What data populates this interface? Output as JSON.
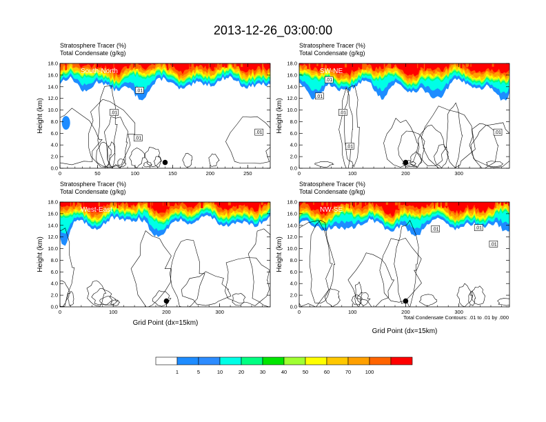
{
  "figure": {
    "title": "2013-12-26_03:00:00",
    "subtitle_tracer": "Stratosphere Tracer   (%)",
    "subtitle_condensate": "Total Condensate   (g/kg)",
    "ylabel": "Height (km)",
    "xlabel": "Grid Point (dx=15km)",
    "contour_note": "Total Condensate Contours: .01 to .01 by .000",
    "contour_label": ".01"
  },
  "colorbar": {
    "levels": [
      "1",
      "5",
      "10",
      "20",
      "30",
      "40",
      "50",
      "60",
      "70",
      "100"
    ],
    "colors": [
      "#ffffff",
      "#1e8cff",
      "#2d8cff",
      "#00ffe6",
      "#00ff82",
      "#00e600",
      "#a0ff32",
      "#ffff00",
      "#ffc800",
      "#ffa000",
      "#ff6400",
      "#ff0000"
    ]
  },
  "chart_data": [
    {
      "type": "heatmap",
      "panel_label": "South-North",
      "x_max": 280,
      "xticks": [
        "0",
        "50",
        "100",
        "150",
        "200",
        "250"
      ],
      "xtick_values": [
        0,
        50,
        100,
        150,
        200,
        250
      ],
      "yticks": [
        "0.0",
        "2.0",
        "4.0",
        "6.0",
        "8.0",
        "10.0",
        "12.0",
        "14.0",
        "16.0",
        "18.0"
      ],
      "ylim": [
        0,
        18
      ],
      "marker": {
        "x": 140,
        "y": 1.0
      },
      "contour_labels": [
        {
          "x": 106,
          "y": 13.4
        },
        {
          "x": 72,
          "y": 9.6
        },
        {
          "x": 104,
          "y": 5.2
        },
        {
          "x": 265,
          "y": 6.2
        }
      ]
    },
    {
      "type": "heatmap",
      "panel_label": "SW-NE",
      "x_max": 395,
      "xticks": [
        "0",
        "100",
        "200",
        "300"
      ],
      "xtick_values": [
        0,
        100,
        200,
        300
      ],
      "yticks": [
        "0.0",
        "2.0",
        "4.0",
        "6.0",
        "8.0",
        "10.0",
        "12.0",
        "14.0",
        "16.0",
        "18.0"
      ],
      "ylim": [
        0,
        18
      ],
      "marker": {
        "x": 200,
        "y": 1.0
      },
      "contour_labels": [
        {
          "x": 56,
          "y": 15.2
        },
        {
          "x": 38,
          "y": 12.4
        },
        {
          "x": 82,
          "y": 9.6
        },
        {
          "x": 95,
          "y": 3.8
        },
        {
          "x": 373,
          "y": 6.2
        }
      ]
    },
    {
      "type": "heatmap",
      "panel_label": "West-East",
      "x_max": 395,
      "xticks": [
        "0",
        "100",
        "200",
        "300"
      ],
      "xtick_values": [
        0,
        100,
        200,
        300
      ],
      "yticks": [
        "0.0",
        "2.0",
        "4.0",
        "6.0",
        "8.0",
        "10.0",
        "12.0",
        "14.0",
        "16.0",
        "18.0"
      ],
      "ylim": [
        0,
        18
      ],
      "marker": {
        "x": 200,
        "y": 1.0
      },
      "contour_labels": []
    },
    {
      "type": "heatmap",
      "panel_label": "NW-SE",
      "x_max": 395,
      "xticks": [
        "0",
        "100",
        "200",
        "300"
      ],
      "xtick_values": [
        0,
        100,
        200,
        300
      ],
      "yticks": [
        "0.0",
        "2.0",
        "4.0",
        "6.0",
        "8.0",
        "10.0",
        "12.0",
        "14.0",
        "16.0",
        "18.0"
      ],
      "ylim": [
        0,
        18
      ],
      "marker": {
        "x": 200,
        "y": 1.0
      },
      "contour_labels": [
        {
          "x": 256,
          "y": 13.4
        },
        {
          "x": 337,
          "y": 13.6
        },
        {
          "x": 365,
          "y": 10.8
        }
      ]
    }
  ]
}
